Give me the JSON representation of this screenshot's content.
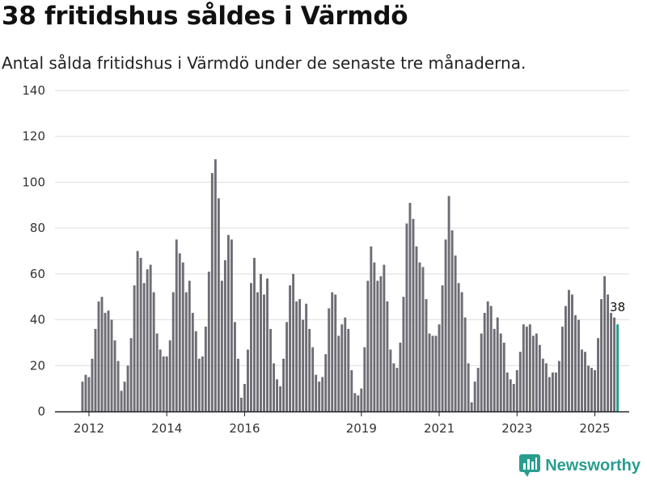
{
  "title": "38 fritidshus såldes i Värmdö",
  "subtitle": "Antal sålda fritidshus i Värmdö under de senaste tre månaderna.",
  "brand": "Newsworthy",
  "colors": {
    "bar": "#6e6d75",
    "highlight": "#1f9c8c",
    "grid": "#dddddd",
    "axis": "#222222",
    "brand": "#2a9d8f"
  },
  "chart_data": {
    "type": "bar",
    "ylim": [
      0,
      140
    ],
    "yticks": [
      0,
      20,
      40,
      60,
      80,
      100,
      120,
      140
    ],
    "xlabel": "",
    "ylabel": "",
    "grid": true,
    "start_month": "2011-11",
    "x_ticks": [
      {
        "label": "2012",
        "month": "2012-01"
      },
      {
        "label": "2014",
        "month": "2014-01"
      },
      {
        "label": "2016",
        "month": "2016-01"
      },
      {
        "label": "2019",
        "month": "2019-01"
      },
      {
        "label": "2021",
        "month": "2021-01"
      },
      {
        "label": "2023",
        "month": "2023-01"
      },
      {
        "label": "2025",
        "month": "2025-01"
      }
    ],
    "values": [
      13,
      16,
      15,
      23,
      36,
      48,
      50,
      43,
      44,
      40,
      31,
      22,
      9,
      13,
      20,
      32,
      55,
      70,
      67,
      56,
      62,
      64,
      52,
      34,
      27,
      24,
      24,
      31,
      52,
      75,
      69,
      65,
      52,
      57,
      43,
      35,
      23,
      24,
      37,
      61,
      104,
      110,
      93,
      57,
      66,
      77,
      75,
      39,
      23,
      6,
      12,
      27,
      56,
      67,
      52,
      60,
      51,
      58,
      36,
      21,
      14,
      11,
      23,
      39,
      55,
      60,
      48,
      49,
      40,
      47,
      36,
      28,
      16,
      13,
      15,
      25,
      45,
      52,
      51,
      33,
      38,
      41,
      36,
      18,
      8,
      7,
      10,
      28,
      57,
      72,
      65,
      57,
      59,
      64,
      48,
      27,
      21,
      19,
      30,
      50,
      82,
      91,
      84,
      72,
      65,
      63,
      49,
      34,
      33,
      33,
      38,
      55,
      75,
      94,
      79,
      68,
      56,
      52,
      41,
      21,
      4,
      13,
      19,
      34,
      43,
      48,
      46,
      36,
      41,
      34,
      30,
      17,
      14,
      12,
      18,
      26,
      38,
      37,
      38,
      33,
      34,
      29,
      23,
      21,
      15,
      17,
      17,
      22,
      37,
      46,
      53,
      51,
      42,
      40,
      27,
      26,
      20,
      19,
      18,
      32,
      49,
      59,
      51,
      43,
      41,
      38
    ],
    "annotation": {
      "text": "38"
    }
  }
}
